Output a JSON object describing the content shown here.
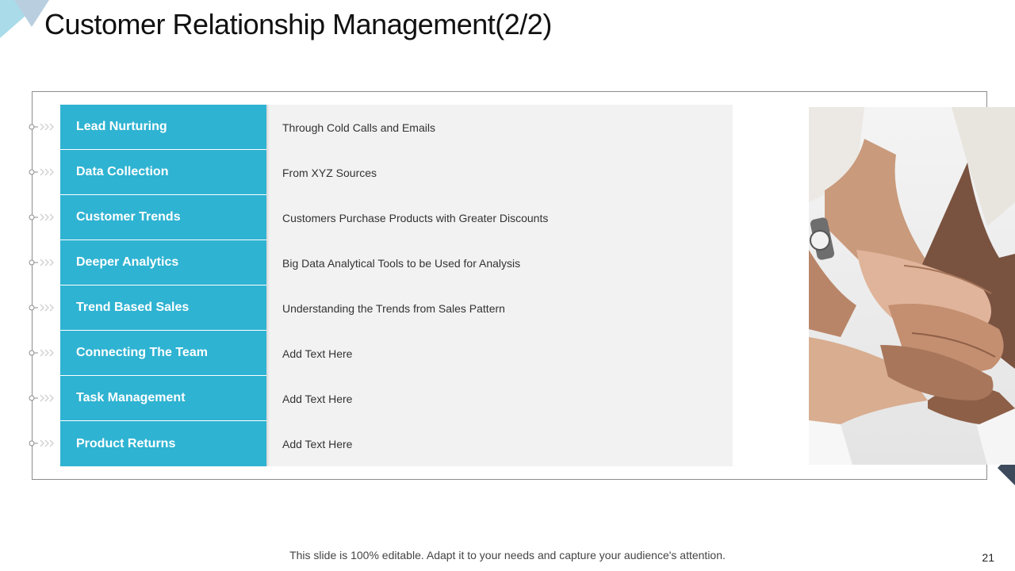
{
  "title": "Customer Relationship Management(2/2)",
  "colors": {
    "accent": "#2fb3d2",
    "panel": "#f2f2f2",
    "frame": "#8c8c8c",
    "decor_light": "#a9dbe8",
    "decor_dark": "#3d4a5c"
  },
  "rows": [
    {
      "label": "Lead Nurturing",
      "description": "Through Cold Calls and Emails"
    },
    {
      "label": "Data Collection",
      "description": "From XYZ  Sources"
    },
    {
      "label": "Customer Trends",
      "description": "Customers Purchase Products with  Greater Discounts"
    },
    {
      "label": "Deeper Analytics",
      "description": "Big Data Analytical Tools to be Used for Analysis"
    },
    {
      "label": "Trend Based Sales",
      "description": "Understanding the Trends from Sales Pattern"
    },
    {
      "label": "Connecting The Team",
      "description": "Add Text Here"
    },
    {
      "label": "Task Management",
      "description": "Add Text Here"
    },
    {
      "label": "Product Returns",
      "description": "Add Text Here"
    }
  ],
  "image_subject": "team-hands-stacked-photo",
  "footer_note": "This slide is 100% editable.  Adapt it to your needs and capture your audience's attention.",
  "page_number": "21"
}
